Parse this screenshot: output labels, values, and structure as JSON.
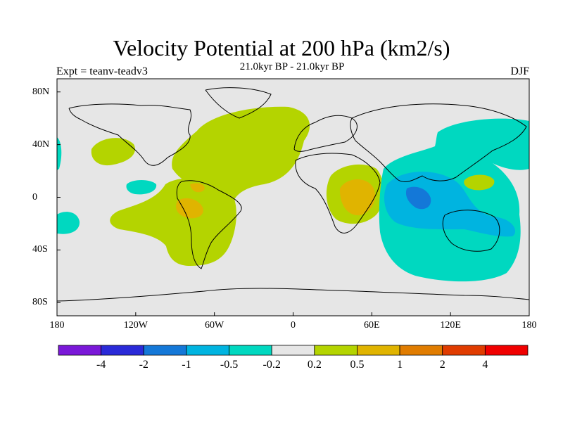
{
  "chart_title": "Velocity Potential at 200 hPa (km2/s)",
  "subtitle": "21.0kyr BP - 21.0kyr BP",
  "experiment_label": "Expt = teanv-teadv3",
  "season_label": "DJF",
  "colors": {
    "background": "#e6e6e6",
    "land_outline": "#000000"
  },
  "chart_data": {
    "type": "heatmap",
    "title": "Velocity Potential at 200 hPa (km2/s)",
    "x_axis": {
      "range": [
        -180,
        180
      ],
      "ticks": [
        {
          "value": -180,
          "label": "180"
        },
        {
          "value": -120,
          "label": "120W"
        },
        {
          "value": -60,
          "label": "60W"
        },
        {
          "value": 0,
          "label": "0"
        },
        {
          "value": 60,
          "label": "60E"
        },
        {
          "value": 120,
          "label": "120E"
        },
        {
          "value": 180,
          "label": "180"
        }
      ]
    },
    "y_axis": {
      "range": [
        -90,
        90
      ],
      "ticks": [
        {
          "value": 80,
          "label": "80N"
        },
        {
          "value": 40,
          "label": "40N"
        },
        {
          "value": 0,
          "label": "0"
        },
        {
          "value": -40,
          "label": "40S"
        },
        {
          "value": -80,
          "label": "80S"
        }
      ]
    },
    "colorbar": {
      "colors": [
        "#7a18d8",
        "#2a2ad8",
        "#1478d8",
        "#00b4e0",
        "#00d8c0",
        "#e6e6e6",
        "#b4d400",
        "#e0b400",
        "#e07c00",
        "#e03c00",
        "#f00000"
      ],
      "labels": [
        "-4",
        "-2",
        "-1",
        "-0.5",
        "-0.2",
        "0.2",
        "0.5",
        "1",
        "2",
        "4"
      ]
    },
    "regions": [
      {
        "name": "North Atlantic / North America positive",
        "level": 0.2,
        "sign": "positive"
      },
      {
        "name": "South America positive",
        "level": 0.2,
        "sign": "positive"
      },
      {
        "name": "South America core",
        "level": 0.5,
        "sign": "positive"
      },
      {
        "name": "East Africa positive",
        "level": 0.2,
        "sign": "positive"
      },
      {
        "name": "East Africa core",
        "level": 0.5,
        "sign": "positive"
      },
      {
        "name": "Western Pacific / Maritime Continent negative",
        "level": -0.2,
        "sign": "negative"
      },
      {
        "name": "Maritime Continent core",
        "level": -0.5,
        "sign": "negative"
      }
    ]
  }
}
